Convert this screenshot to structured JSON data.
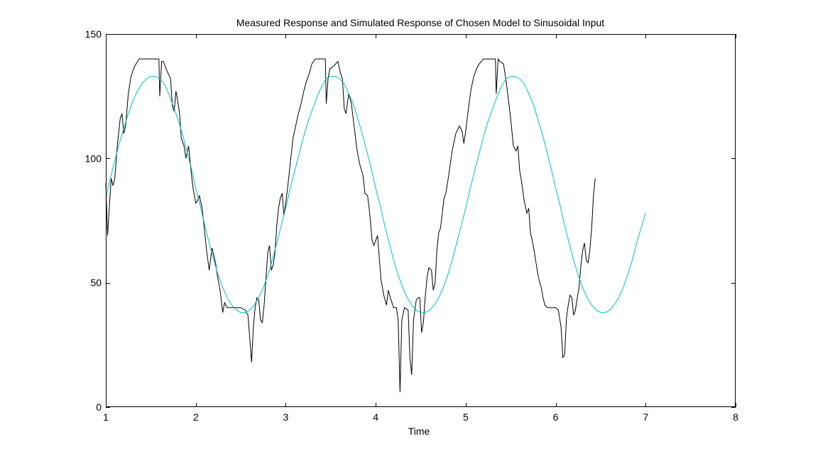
{
  "chart_data": {
    "type": "line",
    "title": "Measured Response and Simulated Response of Chosen Model to Sinusoidal Input",
    "xlabel": "Time",
    "ylabel": "",
    "xlim": [
      1,
      8
    ],
    "ylim": [
      0,
      150
    ],
    "xticks": [
      1,
      2,
      3,
      4,
      5,
      6,
      7,
      8
    ],
    "yticks": [
      0,
      50,
      100,
      150
    ],
    "grid": false,
    "legend": "none",
    "series": [
      {
        "color": "#000000",
        "points": [
          [
            1.0,
            90
          ],
          [
            1.02,
            69
          ],
          [
            1.04,
            81
          ],
          [
            1.06,
            92
          ],
          [
            1.08,
            89
          ],
          [
            1.1,
            92
          ],
          [
            1.13,
            106
          ],
          [
            1.16,
            116
          ],
          [
            1.18,
            118
          ],
          [
            1.2,
            110
          ],
          [
            1.22,
            113
          ],
          [
            1.25,
            126
          ],
          [
            1.28,
            133
          ],
          [
            1.32,
            137
          ],
          [
            1.37,
            140
          ],
          [
            1.45,
            140
          ],
          [
            1.48,
            140
          ],
          [
            1.59,
            140
          ],
          [
            1.6,
            125
          ],
          [
            1.62,
            139
          ],
          [
            1.64,
            139
          ],
          [
            1.67,
            136
          ],
          [
            1.72,
            132
          ],
          [
            1.74,
            121
          ],
          [
            1.76,
            119
          ],
          [
            1.78,
            127
          ],
          [
            1.8,
            123
          ],
          [
            1.82,
            118
          ],
          [
            1.84,
            108
          ],
          [
            1.87,
            105
          ],
          [
            1.89,
            100
          ],
          [
            1.92,
            105
          ],
          [
            1.95,
            94
          ],
          [
            1.97,
            88
          ],
          [
            2.0,
            82
          ],
          [
            2.02,
            83
          ],
          [
            2.04,
            85
          ],
          [
            2.07,
            80
          ],
          [
            2.1,
            70
          ],
          [
            2.12,
            63
          ],
          [
            2.15,
            55
          ],
          [
            2.18,
            64
          ],
          [
            2.22,
            58
          ],
          [
            2.24,
            53
          ],
          [
            2.27,
            47
          ],
          [
            2.3,
            38
          ],
          [
            2.32,
            42
          ],
          [
            2.35,
            40
          ],
          [
            2.4,
            40
          ],
          [
            2.5,
            40
          ],
          [
            2.55,
            39
          ],
          [
            2.58,
            37
          ],
          [
            2.61,
            23
          ],
          [
            2.62,
            18
          ],
          [
            2.64,
            32
          ],
          [
            2.66,
            40
          ],
          [
            2.68,
            44
          ],
          [
            2.7,
            43
          ],
          [
            2.72,
            35
          ],
          [
            2.74,
            34
          ],
          [
            2.76,
            41
          ],
          [
            2.78,
            52
          ],
          [
            2.8,
            62
          ],
          [
            2.82,
            65
          ],
          [
            2.84,
            55
          ],
          [
            2.86,
            57
          ],
          [
            2.88,
            62
          ],
          [
            2.9,
            73
          ],
          [
            2.92,
            80
          ],
          [
            2.94,
            84
          ],
          [
            2.96,
            86
          ],
          [
            2.98,
            77
          ],
          [
            3.0,
            82
          ],
          [
            3.02,
            88
          ],
          [
            3.05,
            98
          ],
          [
            3.08,
            108
          ],
          [
            3.11,
            113
          ],
          [
            3.14,
            118
          ],
          [
            3.17,
            122
          ],
          [
            3.2,
            127
          ],
          [
            3.23,
            131
          ],
          [
            3.26,
            134
          ],
          [
            3.29,
            138
          ],
          [
            3.33,
            140
          ],
          [
            3.4,
            140
          ],
          [
            3.44,
            140
          ],
          [
            3.45,
            122
          ],
          [
            3.47,
            132
          ],
          [
            3.49,
            136
          ],
          [
            3.53,
            137
          ],
          [
            3.58,
            139
          ],
          [
            3.61,
            134
          ],
          [
            3.63,
            132
          ],
          [
            3.65,
            120
          ],
          [
            3.67,
            118
          ],
          [
            3.7,
            126
          ],
          [
            3.73,
            122
          ],
          [
            3.76,
            113
          ],
          [
            3.79,
            104
          ],
          [
            3.82,
            98
          ],
          [
            3.86,
            93
          ],
          [
            3.88,
            86
          ],
          [
            3.91,
            85
          ],
          [
            3.93,
            79
          ],
          [
            3.96,
            67
          ],
          [
            3.98,
            65
          ],
          [
            4.02,
            69
          ],
          [
            4.04,
            60
          ],
          [
            4.06,
            51
          ],
          [
            4.09,
            45
          ],
          [
            4.12,
            41
          ],
          [
            4.14,
            47
          ],
          [
            4.17,
            43
          ],
          [
            4.2,
            40
          ],
          [
            4.23,
            40
          ],
          [
            4.25,
            35
          ],
          [
            4.27,
            6
          ],
          [
            4.29,
            35
          ],
          [
            4.32,
            40
          ],
          [
            4.36,
            39
          ],
          [
            4.38,
            20
          ],
          [
            4.4,
            13
          ],
          [
            4.42,
            35
          ],
          [
            4.45,
            43
          ],
          [
            4.47,
            44
          ],
          [
            4.49,
            44
          ],
          [
            4.51,
            30
          ],
          [
            4.53,
            34
          ],
          [
            4.55,
            44
          ],
          [
            4.57,
            52
          ],
          [
            4.59,
            56
          ],
          [
            4.62,
            55
          ],
          [
            4.64,
            47
          ],
          [
            4.66,
            50
          ],
          [
            4.68,
            63
          ],
          [
            4.7,
            70
          ],
          [
            4.72,
            72
          ],
          [
            4.74,
            78
          ],
          [
            4.76,
            84
          ],
          [
            4.78,
            86
          ],
          [
            4.81,
            93
          ],
          [
            4.85,
            103
          ],
          [
            4.89,
            110
          ],
          [
            4.93,
            113
          ],
          [
            4.96,
            111
          ],
          [
            4.98,
            106
          ],
          [
            5.0,
            111
          ],
          [
            5.03,
            120
          ],
          [
            5.06,
            128
          ],
          [
            5.09,
            133
          ],
          [
            5.12,
            136
          ],
          [
            5.15,
            138
          ],
          [
            5.2,
            140
          ],
          [
            5.33,
            140
          ],
          [
            5.34,
            126
          ],
          [
            5.36,
            140
          ],
          [
            5.38,
            139
          ],
          [
            5.42,
            138
          ],
          [
            5.45,
            131
          ],
          [
            5.48,
            122
          ],
          [
            5.5,
            116
          ],
          [
            5.53,
            105
          ],
          [
            5.56,
            103
          ],
          [
            5.58,
            105
          ],
          [
            5.6,
            95
          ],
          [
            5.62,
            91
          ],
          [
            5.65,
            83
          ],
          [
            5.68,
            78
          ],
          [
            5.7,
            80
          ],
          [
            5.72,
            70
          ],
          [
            5.74,
            67
          ],
          [
            5.76,
            63
          ],
          [
            5.79,
            56
          ],
          [
            5.81,
            52
          ],
          [
            5.84,
            48
          ],
          [
            5.86,
            44
          ],
          [
            5.88,
            41
          ],
          [
            5.91,
            40
          ],
          [
            5.95,
            40
          ],
          [
            6.0,
            40
          ],
          [
            6.03,
            39
          ],
          [
            6.06,
            32
          ],
          [
            6.08,
            20
          ],
          [
            6.1,
            21
          ],
          [
            6.12,
            36
          ],
          [
            6.14,
            41
          ],
          [
            6.16,
            45
          ],
          [
            6.18,
            44
          ],
          [
            6.2,
            37
          ],
          [
            6.22,
            39
          ],
          [
            6.24,
            44
          ],
          [
            6.26,
            48
          ],
          [
            6.28,
            57
          ],
          [
            6.3,
            63
          ],
          [
            6.32,
            66
          ],
          [
            6.34,
            59
          ],
          [
            6.36,
            58
          ],
          [
            6.38,
            63
          ],
          [
            6.4,
            72
          ],
          [
            6.42,
            85
          ],
          [
            6.44,
            92
          ]
        ]
      },
      {
        "color": "#00BFBF",
        "points": [
          [
            1.0,
            84
          ],
          [
            1.05,
            92
          ],
          [
            1.1,
            99
          ],
          [
            1.15,
            106
          ],
          [
            1.2,
            112
          ],
          [
            1.25,
            118
          ],
          [
            1.3,
            123
          ],
          [
            1.35,
            127
          ],
          [
            1.4,
            130
          ],
          [
            1.45,
            132
          ],
          [
            1.5,
            133
          ],
          [
            1.55,
            133
          ],
          [
            1.6,
            132
          ],
          [
            1.65,
            130
          ],
          [
            1.7,
            126
          ],
          [
            1.75,
            121
          ],
          [
            1.8,
            116
          ],
          [
            1.85,
            110
          ],
          [
            1.9,
            103
          ],
          [
            1.95,
            96
          ],
          [
            2.0,
            88
          ],
          [
            2.05,
            81
          ],
          [
            2.1,
            73
          ],
          [
            2.15,
            66
          ],
          [
            2.2,
            59
          ],
          [
            2.25,
            53
          ],
          [
            2.3,
            48
          ],
          [
            2.35,
            44
          ],
          [
            2.4,
            41
          ],
          [
            2.45,
            39
          ],
          [
            2.5,
            38
          ],
          [
            2.55,
            38
          ],
          [
            2.6,
            39
          ],
          [
            2.65,
            41
          ],
          [
            2.7,
            44
          ],
          [
            2.75,
            48
          ],
          [
            2.8,
            53
          ],
          [
            2.85,
            59
          ],
          [
            2.9,
            66
          ],
          [
            2.95,
            73
          ],
          [
            3.0,
            80
          ],
          [
            3.05,
            88
          ],
          [
            3.1,
            95
          ],
          [
            3.15,
            102
          ],
          [
            3.2,
            109
          ],
          [
            3.25,
            115
          ],
          [
            3.3,
            120
          ],
          [
            3.35,
            125
          ],
          [
            3.4,
            129
          ],
          [
            3.45,
            132
          ],
          [
            3.5,
            133
          ],
          [
            3.55,
            133
          ],
          [
            3.6,
            132
          ],
          [
            3.65,
            130
          ],
          [
            3.7,
            126
          ],
          [
            3.75,
            122
          ],
          [
            3.8,
            116
          ],
          [
            3.85,
            110
          ],
          [
            3.9,
            103
          ],
          [
            3.95,
            96
          ],
          [
            4.0,
            88
          ],
          [
            4.05,
            81
          ],
          [
            4.1,
            73
          ],
          [
            4.15,
            66
          ],
          [
            4.2,
            59
          ],
          [
            4.25,
            53
          ],
          [
            4.3,
            48
          ],
          [
            4.35,
            44
          ],
          [
            4.4,
            41
          ],
          [
            4.45,
            39
          ],
          [
            4.5,
            38
          ],
          [
            4.55,
            38
          ],
          [
            4.6,
            39
          ],
          [
            4.65,
            41
          ],
          [
            4.7,
            44
          ],
          [
            4.75,
            48
          ],
          [
            4.8,
            53
          ],
          [
            4.85,
            59
          ],
          [
            4.9,
            66
          ],
          [
            4.95,
            73
          ],
          [
            5.0,
            80
          ],
          [
            5.05,
            88
          ],
          [
            5.1,
            95
          ],
          [
            5.15,
            102
          ],
          [
            5.2,
            109
          ],
          [
            5.25,
            115
          ],
          [
            5.3,
            120
          ],
          [
            5.35,
            125
          ],
          [
            5.4,
            129
          ],
          [
            5.45,
            132
          ],
          [
            5.5,
            133
          ],
          [
            5.55,
            133
          ],
          [
            5.6,
            132
          ],
          [
            5.65,
            130
          ],
          [
            5.7,
            126
          ],
          [
            5.75,
            122
          ],
          [
            5.8,
            116
          ],
          [
            5.85,
            110
          ],
          [
            5.9,
            103
          ],
          [
            5.95,
            96
          ],
          [
            6.0,
            88
          ],
          [
            6.05,
            81
          ],
          [
            6.1,
            73
          ],
          [
            6.15,
            66
          ],
          [
            6.2,
            59
          ],
          [
            6.25,
            53
          ],
          [
            6.3,
            48
          ],
          [
            6.35,
            44
          ],
          [
            6.4,
            41
          ],
          [
            6.45,
            39
          ],
          [
            6.5,
            38
          ],
          [
            6.55,
            38
          ],
          [
            6.6,
            39
          ],
          [
            6.65,
            41
          ],
          [
            6.7,
            44
          ],
          [
            6.75,
            48
          ],
          [
            6.8,
            53
          ],
          [
            6.85,
            59
          ],
          [
            6.9,
            66
          ],
          [
            6.95,
            72
          ],
          [
            7.0,
            78
          ]
        ]
      }
    ]
  }
}
